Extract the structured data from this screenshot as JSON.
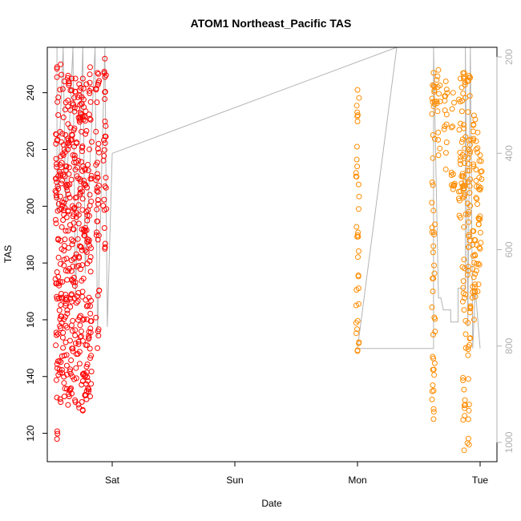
{
  "chart_data": {
    "type": "scatter",
    "title": "ATOM1 Northeast_Pacific TAS",
    "xlabel": "Date",
    "ylabel": "TAS",
    "x_ticks": [
      "Sat",
      "Sun",
      "Mon",
      "Tue"
    ],
    "y_ticks": [
      120,
      140,
      160,
      180,
      200,
      220,
      240
    ],
    "ylim": [
      110,
      256
    ],
    "y2_label": "",
    "y2_ticks": [
      200,
      400,
      600,
      800,
      1000
    ],
    "y2lim": [
      1040,
      180
    ],
    "grid": false,
    "legend": "none",
    "series": [
      {
        "color": "#ff0000",
        "marker": "open-circle",
        "clusters": [
          {
            "x_day": -0.45,
            "y_min": 118,
            "y_max": 249
          },
          {
            "x_day": -0.42,
            "y_min": 131,
            "y_max": 250
          },
          {
            "x_day": -0.39,
            "y_min": 133,
            "y_max": 244
          },
          {
            "x_day": -0.36,
            "y_min": 130,
            "y_max": 246
          },
          {
            "x_day": -0.33,
            "y_min": 134,
            "y_max": 245
          },
          {
            "x_day": -0.3,
            "y_min": 131,
            "y_max": 245
          },
          {
            "x_day": -0.27,
            "y_min": 129,
            "y_max": 243
          },
          {
            "x_day": -0.24,
            "y_min": 128,
            "y_max": 245
          },
          {
            "x_day": -0.21,
            "y_min": 132,
            "y_max": 243
          },
          {
            "x_day": -0.18,
            "y_min": 133,
            "y_max": 249
          },
          {
            "x_day": -0.12,
            "y_min": 150,
            "y_max": 247
          },
          {
            "x_day": -0.06,
            "y_min": 185,
            "y_max": 252
          }
        ]
      },
      {
        "color": "#ff8c00",
        "marker": "open-circle",
        "clusters": [
          {
            "x_day": 2.0,
            "y_min": 149,
            "y_max": 241
          },
          {
            "x_day": 2.62,
            "y_min": 125,
            "y_max": 247
          },
          {
            "x_day": 2.66,
            "y_min": 218,
            "y_max": 248
          },
          {
            "x_day": 2.72,
            "y_min": 213,
            "y_max": 244
          },
          {
            "x_day": 2.78,
            "y_min": 206,
            "y_max": 240
          },
          {
            "x_day": 2.84,
            "y_min": 196,
            "y_max": 245
          },
          {
            "x_day": 2.87,
            "y_min": 114,
            "y_max": 247
          },
          {
            "x_day": 2.91,
            "y_min": 116,
            "y_max": 246
          },
          {
            "x_day": 2.95,
            "y_min": 160,
            "y_max": 232
          },
          {
            "x_day": 2.98,
            "y_min": 170,
            "y_max": 226
          },
          {
            "x_day": 3.0,
            "y_min": 185,
            "y_max": 218
          }
        ]
      }
    ],
    "reference_line": {
      "color": "#b4b4b4",
      "axis": "y2",
      "points": [
        {
          "x_day": -0.45,
          "y": 180
        },
        {
          "x_day": -0.45,
          "y": 520
        },
        {
          "x_day": -0.4,
          "y": 180
        },
        {
          "x_day": -0.38,
          "y": 520
        },
        {
          "x_day": -0.32,
          "y": 180
        },
        {
          "x_day": -0.3,
          "y": 700
        },
        {
          "x_day": -0.24,
          "y": 180
        },
        {
          "x_day": -0.22,
          "y": 650
        },
        {
          "x_day": -0.14,
          "y": 180
        },
        {
          "x_day": -0.12,
          "y": 780
        },
        {
          "x_day": -0.06,
          "y": 180
        },
        {
          "x_day": -0.04,
          "y": 760
        },
        {
          "x_day": 0.0,
          "y": 400
        },
        {
          "x_day": 2.32,
          "y": 180
        },
        {
          "x_day": 2.0,
          "y": 805
        },
        {
          "x_day": 2.62,
          "y": 805
        },
        {
          "x_day": 2.62,
          "y": 180
        },
        {
          "x_day": 2.66,
          "y": 700
        },
        {
          "x_day": 2.68,
          "y": 700
        },
        {
          "x_day": 2.7,
          "y": 725
        },
        {
          "x_day": 2.76,
          "y": 725
        },
        {
          "x_day": 2.76,
          "y": 750
        },
        {
          "x_day": 2.82,
          "y": 750
        },
        {
          "x_day": 2.82,
          "y": 680
        },
        {
          "x_day": 2.88,
          "y": 680
        },
        {
          "x_day": 2.88,
          "y": 180
        },
        {
          "x_day": 2.9,
          "y": 760
        },
        {
          "x_day": 2.92,
          "y": 180
        },
        {
          "x_day": 2.94,
          "y": 805
        },
        {
          "x_day": 2.96,
          "y": 680
        },
        {
          "x_day": 3.0,
          "y": 805
        }
      ]
    }
  }
}
